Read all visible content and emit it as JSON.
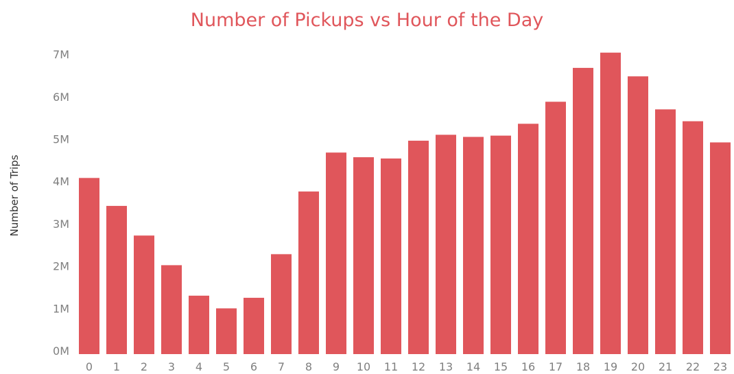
{
  "chart_data": {
    "type": "bar",
    "title": "Number of Pickups vs Hour of the Day",
    "xlabel": "",
    "ylabel": "Number of Trips",
    "categories": [
      "0",
      "1",
      "2",
      "3",
      "4",
      "5",
      "6",
      "7",
      "8",
      "9",
      "10",
      "11",
      "12",
      "13",
      "14",
      "15",
      "16",
      "17",
      "18",
      "19",
      "20",
      "21",
      "22",
      "23"
    ],
    "values": [
      4160000,
      3500000,
      2800000,
      2100000,
      1380000,
      1080000,
      1330000,
      2360000,
      3840000,
      4760000,
      4650000,
      4620000,
      5040000,
      5180000,
      5130000,
      5160000,
      5440000,
      5960000,
      6760000,
      7120000,
      6560000,
      5780000,
      5500000,
      5000000
    ],
    "yticks": [
      "0M",
      "1M",
      "2M",
      "3M",
      "4M",
      "5M",
      "6M",
      "7M"
    ],
    "ytick_values": [
      0,
      1000000,
      2000000,
      3000000,
      4000000,
      5000000,
      6000000,
      7000000
    ],
    "ylim": [
      0,
      7300000
    ],
    "bar_color": "#e0565b",
    "grid": false,
    "legend": "none"
  }
}
